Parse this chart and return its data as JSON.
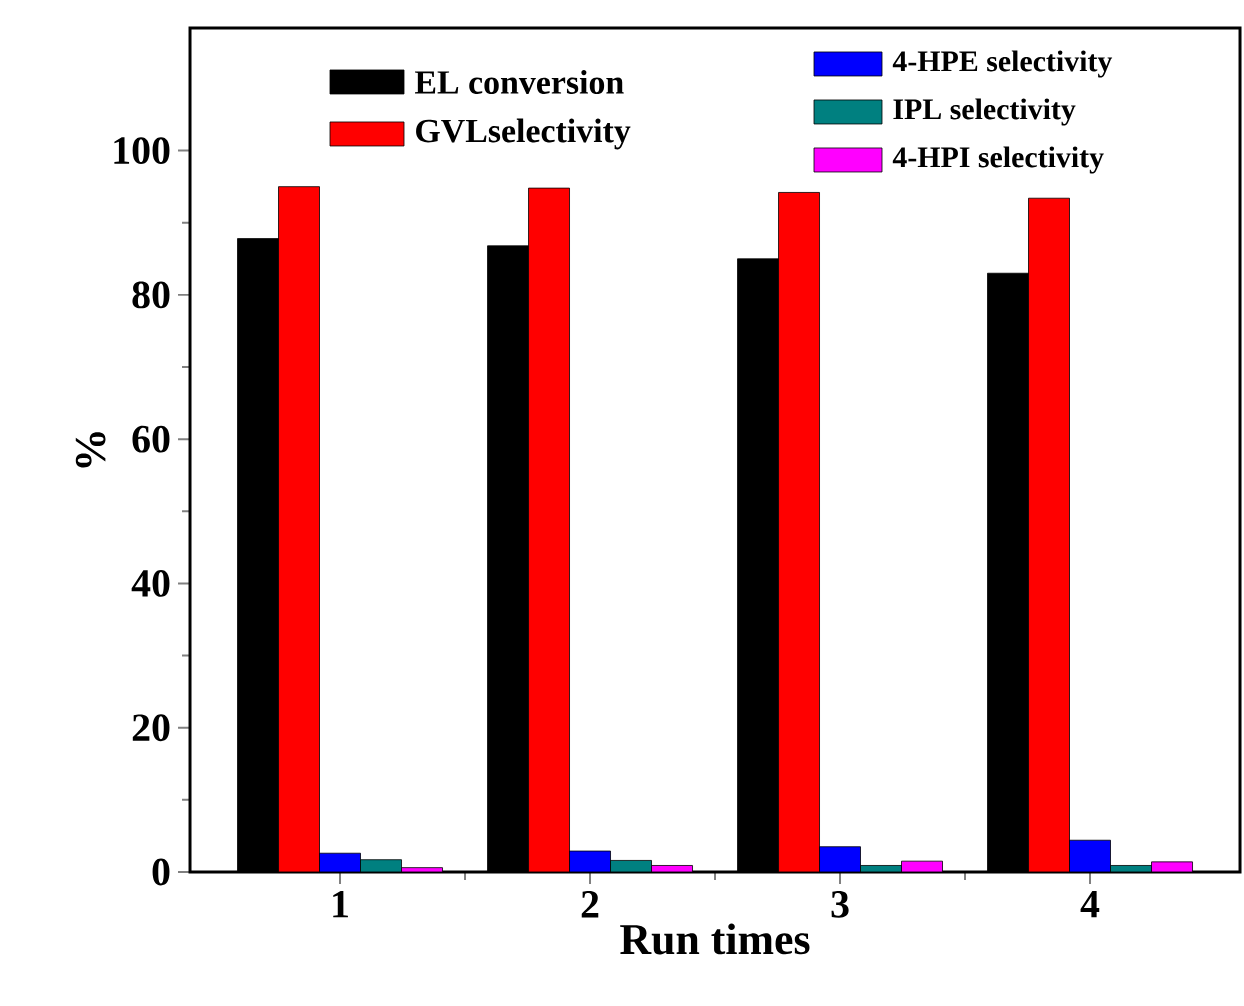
{
  "chart_data": {
    "type": "bar",
    "xlabel": "Run times",
    "ylabel": "%",
    "categories": [
      "1",
      "2",
      "3",
      "4"
    ],
    "ylim": [
      0,
      117
    ],
    "yticks": [
      0,
      20,
      40,
      60,
      80,
      100
    ],
    "legend": "top",
    "series": [
      {
        "name": "EL conversion",
        "color": "#000000",
        "values": [
          87.8,
          86.8,
          85.0,
          83.0
        ]
      },
      {
        "name": "GVLselectivity",
        "color": "#ff0000",
        "values": [
          95.0,
          94.8,
          94.2,
          93.4
        ]
      },
      {
        "name": "4-HPE selectivity",
        "color": "#0000ff",
        "values": [
          2.6,
          2.9,
          3.5,
          4.4
        ]
      },
      {
        "name": "IPL selectivity",
        "color": "#008080",
        "values": [
          1.7,
          1.6,
          0.9,
          0.9
        ]
      },
      {
        "name": "4-HPI selectivity",
        "color": "#ff00ff",
        "values": [
          0.6,
          0.9,
          1.5,
          1.4
        ]
      }
    ]
  }
}
